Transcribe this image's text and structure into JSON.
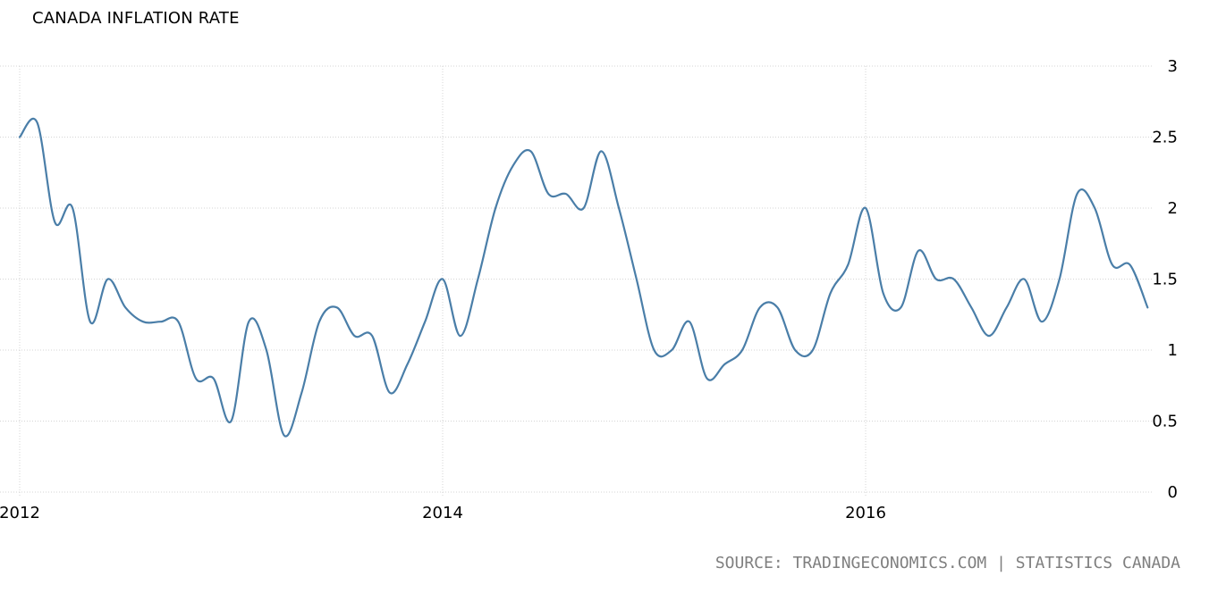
{
  "chart_data": {
    "type": "line",
    "title": "CANADA INFLATION RATE",
    "source": "SOURCE: TRADINGECONOMICS.COM | STATISTICS CANADA",
    "xlabel": "",
    "ylabel": "",
    "xlim": [
      "2012-01",
      "2017-05"
    ],
    "ylim": [
      0,
      3
    ],
    "yticks": [
      "0",
      "0.5",
      "1",
      "1.5",
      "2",
      "2.5",
      "3"
    ],
    "xticks": [
      "2012",
      "2014",
      "2016"
    ],
    "grid": true,
    "line_color": "#4a7ea8",
    "x": [
      "2012-01",
      "2012-02",
      "2012-03",
      "2012-04",
      "2012-05",
      "2012-06",
      "2012-07",
      "2012-08",
      "2012-09",
      "2012-10",
      "2012-11",
      "2012-12",
      "2013-01",
      "2013-02",
      "2013-03",
      "2013-04",
      "2013-05",
      "2013-06",
      "2013-07",
      "2013-08",
      "2013-09",
      "2013-10",
      "2013-11",
      "2013-12",
      "2014-01",
      "2014-02",
      "2014-03",
      "2014-04",
      "2014-05",
      "2014-06",
      "2014-07",
      "2014-08",
      "2014-09",
      "2014-10",
      "2014-11",
      "2014-12",
      "2015-01",
      "2015-02",
      "2015-03",
      "2015-04",
      "2015-05",
      "2015-06",
      "2015-07",
      "2015-08",
      "2015-09",
      "2015-10",
      "2015-11",
      "2015-12",
      "2016-01",
      "2016-02",
      "2016-03",
      "2016-04",
      "2016-05",
      "2016-06",
      "2016-07",
      "2016-08",
      "2016-09",
      "2016-10",
      "2016-11",
      "2016-12",
      "2017-01",
      "2017-02",
      "2017-03",
      "2017-04",
      "2017-05"
    ],
    "series": [
      {
        "values": [
          2.5,
          2.6,
          1.9,
          2.0,
          1.2,
          1.5,
          1.3,
          1.2,
          1.2,
          1.2,
          0.8,
          0.8,
          0.5,
          1.2,
          1.0,
          0.4,
          0.7,
          1.2,
          1.3,
          1.1,
          1.1,
          0.7,
          0.9,
          1.2,
          1.5,
          1.1,
          1.5,
          2.0,
          2.3,
          2.4,
          2.1,
          2.1,
          2.0,
          2.4,
          2.0,
          1.5,
          1.0,
          1.0,
          1.2,
          0.8,
          0.9,
          1.0,
          1.3,
          1.3,
          1.0,
          1.0,
          1.4,
          1.6,
          2.0,
          1.4,
          1.3,
          1.7,
          1.5,
          1.5,
          1.3,
          1.1,
          1.3,
          1.5,
          1.2,
          1.5,
          2.1,
          2.0,
          1.6,
          1.6,
          1.3
        ]
      }
    ]
  }
}
